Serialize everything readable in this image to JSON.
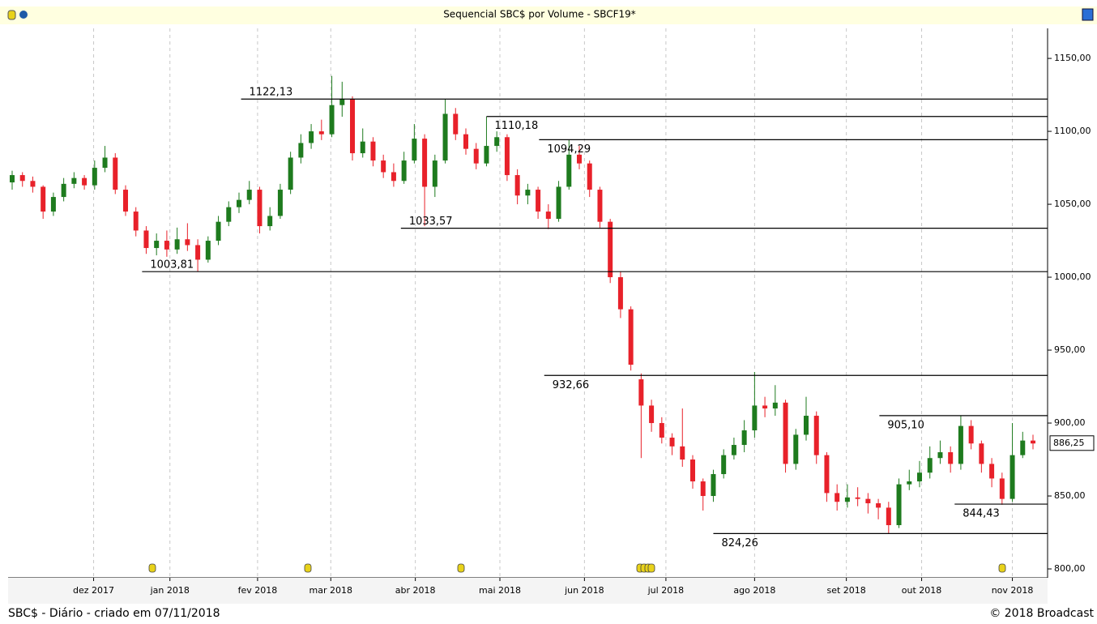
{
  "chart_data": {
    "type": "candlestick",
    "title": "Sequencial SBC$ por Volume - SBCF19*",
    "footer_left": "SBC$ - Diário - criado em 07/11/2018",
    "footer_right": "© 2018 Broadcast",
    "up_color": "#1e7b1e",
    "down_color": "#e8212a",
    "open": [
      1065,
      1070,
      1066,
      1062,
      1045,
      1055,
      1064,
      1068,
      1063,
      1075,
      1082,
      1060,
      1045,
      1032,
      1020,
      1025,
      1019,
      1026,
      1022,
      1012,
      1025,
      1038,
      1048,
      1053,
      1060,
      1035,
      1042,
      1060,
      1082,
      1092,
      1100,
      1098,
      1118,
      1122,
      1085,
      1093,
      1080,
      1072,
      1066,
      1080,
      1095,
      1062,
      1080,
      1112,
      1098,
      1088,
      1078,
      1090,
      1096,
      1070,
      1056,
      1060,
      1045,
      1040,
      1062,
      1084,
      1078,
      1060,
      1038,
      1000,
      978,
      930,
      912,
      900,
      890,
      884,
      875,
      860,
      850,
      865,
      878,
      885,
      895,
      912,
      910,
      914,
      872,
      892,
      905,
      878,
      852,
      846,
      849,
      848,
      845,
      842,
      830,
      858,
      860,
      866,
      876,
      880,
      872,
      898,
      886,
      872,
      862,
      848,
      878,
      888
    ],
    "close": [
      1070,
      1066,
      1062,
      1045,
      1055,
      1064,
      1068,
      1063,
      1075,
      1082,
      1060,
      1045,
      1032,
      1020,
      1025,
      1019,
      1026,
      1022,
      1012,
      1025,
      1038,
      1048,
      1053,
      1060,
      1035,
      1042,
      1060,
      1082,
      1092,
      1100,
      1098,
      1118,
      1122,
      1085,
      1093,
      1080,
      1072,
      1066,
      1080,
      1095,
      1062,
      1080,
      1112,
      1098,
      1088,
      1078,
      1090,
      1096,
      1070,
      1056,
      1060,
      1045,
      1040,
      1062,
      1084,
      1078,
      1060,
      1038,
      1000,
      978,
      940,
      912,
      900,
      890,
      884,
      875,
      860,
      850,
      865,
      878,
      885,
      895,
      912,
      910,
      914,
      872,
      892,
      905,
      878,
      852,
      846,
      849,
      848,
      845,
      842,
      830,
      858,
      860,
      866,
      876,
      880,
      872,
      898,
      886,
      872,
      862,
      848,
      878,
      888,
      886
    ],
    "high": [
      1073,
      1072,
      1069,
      1063,
      1058,
      1068,
      1072,
      1070,
      1080,
      1090,
      1085,
      1063,
      1048,
      1035,
      1030,
      1032,
      1034,
      1037,
      1026,
      1028,
      1042,
      1052,
      1058,
      1066,
      1062,
      1048,
      1064,
      1086,
      1098,
      1105,
      1108,
      1138,
      1134,
      1124,
      1102,
      1096,
      1084,
      1078,
      1086,
      1105,
      1098,
      1084,
      1122,
      1116,
      1102,
      1092,
      1110,
      1100,
      1098,
      1074,
      1064,
      1062,
      1050,
      1066,
      1094,
      1090,
      1080,
      1062,
      1040,
      1004,
      980,
      934,
      916,
      904,
      893,
      910,
      878,
      862,
      868,
      882,
      890,
      902,
      935,
      918,
      926,
      916,
      896,
      918,
      908,
      880,
      858,
      858,
      856,
      852,
      848,
      846,
      862,
      868,
      874,
      884,
      888,
      884,
      905,
      902,
      888,
      876,
      866,
      900,
      894,
      892
    ],
    "low": [
      1060,
      1062,
      1058,
      1040,
      1042,
      1052,
      1061,
      1060,
      1060,
      1072,
      1057,
      1042,
      1028,
      1016,
      1015,
      1014,
      1016,
      1018,
      1004,
      1010,
      1022,
      1035,
      1044,
      1050,
      1030,
      1032,
      1040,
      1057,
      1078,
      1088,
      1094,
      1096,
      1110,
      1080,
      1082,
      1076,
      1068,
      1062,
      1064,
      1078,
      1035,
      1055,
      1078,
      1094,
      1084,
      1074,
      1076,
      1086,
      1066,
      1050,
      1050,
      1040,
      1033,
      1038,
      1060,
      1074,
      1055,
      1034,
      996,
      972,
      936,
      876,
      894,
      886,
      878,
      870,
      855,
      840,
      846,
      862,
      875,
      880,
      890,
      904,
      905,
      866,
      868,
      888,
      872,
      846,
      840,
      842,
      843,
      838,
      834,
      824,
      828,
      854,
      856,
      862,
      872,
      866,
      868,
      882,
      866,
      856,
      844,
      846,
      876,
      882
    ],
    "xlim": [
      -0.393,
      100.414
    ],
    "xticks": [
      {
        "value": 7.9,
        "label": "dez 2017"
      },
      {
        "value": 15.3,
        "label": "jan 2018"
      },
      {
        "value": 23.8,
        "label": "fev 2018"
      },
      {
        "value": 30.9,
        "label": "mar 2018"
      },
      {
        "value": 39.1,
        "label": "abr 2018"
      },
      {
        "value": 47.3,
        "label": "mai 2018"
      },
      {
        "value": 55.5,
        "label": "jun 2018"
      },
      {
        "value": 63.4,
        "label": "jul 2018"
      },
      {
        "value": 72.0,
        "label": "ago 2018"
      },
      {
        "value": 80.9,
        "label": "set 2018"
      },
      {
        "value": 88.2,
        "label": "out 2018"
      },
      {
        "value": 97.0,
        "label": "nov 2018"
      }
    ],
    "ylim": [
      793.9,
      1170.6
    ],
    "yticks": [
      {
        "value": 800,
        "label": "800,00"
      },
      {
        "value": 850,
        "label": "850,00"
      },
      {
        "value": 900,
        "label": "900,00"
      },
      {
        "value": 950,
        "label": "950,00"
      },
      {
        "value": 1000,
        "label": "1000,00"
      },
      {
        "value": 1050,
        "label": "1050,00"
      },
      {
        "value": 1100,
        "label": "1100,00"
      },
      {
        "value": 1150,
        "label": "1150,00"
      }
    ],
    "last_price": {
      "value": 886.25,
      "label": "886,25"
    },
    "levels": [
      {
        "value": 1122.13,
        "label": "1122,13",
        "from": 22.2,
        "label_side": "above"
      },
      {
        "value": 1110.18,
        "label": "1110,18",
        "from": 46.0,
        "label_side": "below"
      },
      {
        "value": 1094.29,
        "label": "1094,29",
        "from": 51.1,
        "label_side": "below"
      },
      {
        "value": 1033.57,
        "label": "1033,57",
        "from": 37.7,
        "label_side": "above"
      },
      {
        "value": 1003.81,
        "label": "1003,81",
        "from": 12.6,
        "label_side": "above"
      },
      {
        "value": 932.66,
        "label": "932,66",
        "from": 51.6,
        "label_side": "below"
      },
      {
        "value": 905.1,
        "label": "905,10",
        "from": 84.1,
        "label_side": "below"
      },
      {
        "value": 844.43,
        "label": "844,43",
        "from": 91.4,
        "label_side": "below"
      },
      {
        "value": 824.26,
        "label": "824,26",
        "from": 68.0,
        "label_side": "below"
      }
    ]
  }
}
